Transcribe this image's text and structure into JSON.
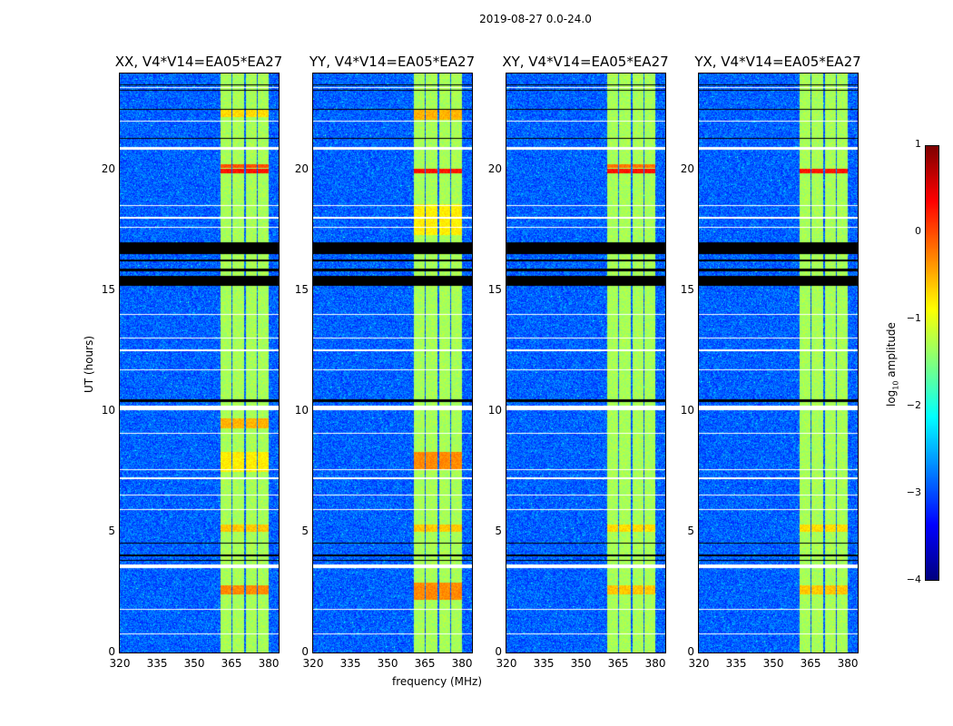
{
  "chart_data": {
    "type": "heatmap",
    "title": "2019-08-27 0.0-24.0",
    "xlabel": "frequency (MHz)",
    "ylabel": "UT (hours)",
    "xlim": [
      320,
      384
    ],
    "ylim": [
      0,
      24
    ],
    "xticks": [
      "320",
      "335",
      "350",
      "365",
      "380"
    ],
    "xtick_values": [
      320,
      335,
      350,
      365,
      380
    ],
    "yticks": [
      "0",
      "5",
      "10",
      "15",
      "20"
    ],
    "ytick_values": [
      0,
      5,
      10,
      15,
      20
    ],
    "colorbar": {
      "label_prefix": "log",
      "label_sub": "10",
      "label_suffix": " amplitude",
      "range": [
        -4,
        1
      ],
      "ticks": [
        "1",
        "0",
        "−1",
        "−2",
        "−3",
        "−4"
      ],
      "tick_values": [
        1,
        0,
        -1,
        -2,
        -3,
        -4
      ],
      "colormap": "jet"
    },
    "background_level": -2.9,
    "band_segments_mhz": [
      [
        360.5,
        365
      ],
      [
        365.5,
        370.2
      ],
      [
        370.7,
        375.2
      ],
      [
        375.7,
        380
      ]
    ],
    "band_level": -1.3,
    "white_flag_hours": [
      [
        20.85,
        20.95
      ],
      [
        18.5,
        18.55
      ],
      [
        18.0,
        18.05
      ],
      [
        17.6,
        17.65
      ],
      [
        14.0,
        14.05
      ],
      [
        13.0,
        13.05
      ],
      [
        12.5,
        12.55
      ],
      [
        11.7,
        11.75
      ],
      [
        10.05,
        10.25
      ],
      [
        9.05,
        9.1
      ],
      [
        7.55,
        7.6
      ],
      [
        7.2,
        7.25
      ],
      [
        6.5,
        6.55
      ],
      [
        5.9,
        5.95
      ],
      [
        3.5,
        3.65
      ],
      [
        1.75,
        1.8
      ],
      [
        0.75,
        0.8
      ],
      [
        23.4,
        23.42
      ],
      [
        22.0,
        22.05
      ]
    ],
    "black_flag_hours": [
      [
        15.2,
        15.6
      ],
      [
        15.8,
        15.9
      ],
      [
        16.2,
        16.3
      ],
      [
        16.5,
        17.0
      ],
      [
        10.4,
        10.5
      ],
      [
        4.5,
        4.55
      ],
      [
        4.0,
        4.05
      ],
      [
        3.8,
        3.85
      ],
      [
        1.6,
        1.63
      ],
      [
        1.3,
        1.33
      ],
      [
        1.0,
        1.03
      ],
      [
        21.3,
        21.33
      ],
      [
        21.5,
        21.53
      ],
      [
        22.5,
        22.53
      ],
      [
        23.3,
        23.33
      ],
      [
        23.5,
        23.53
      ],
      [
        19.7,
        19.73
      ]
    ],
    "panels": [
      {
        "title": "XX, V4*V14=EA05*EA27",
        "hot_rows": [
          [
            19.85,
            20.05,
            0.3
          ],
          [
            20.1,
            20.25,
            0.0
          ],
          [
            22.2,
            22.5,
            -0.7
          ],
          [
            9.3,
            9.7,
            -0.5
          ],
          [
            7.5,
            8.3,
            -0.8
          ],
          [
            5.0,
            5.3,
            -0.6
          ],
          [
            2.4,
            2.8,
            -0.3
          ]
        ]
      },
      {
        "title": "YY, V4*V14=EA05*EA27",
        "hot_rows": [
          [
            19.85,
            20.05,
            0.3
          ],
          [
            22.1,
            22.5,
            -0.5
          ],
          [
            7.6,
            8.3,
            -0.3
          ],
          [
            5.0,
            5.3,
            -0.6
          ],
          [
            2.2,
            2.9,
            -0.3
          ],
          [
            17.3,
            18.6,
            -0.8
          ]
        ]
      },
      {
        "title": "XY, V4*V14=EA05*EA27",
        "hot_rows": [
          [
            19.85,
            20.05,
            0.3
          ],
          [
            20.1,
            20.25,
            -0.2
          ],
          [
            5.0,
            5.3,
            -0.7
          ],
          [
            2.4,
            2.8,
            -0.6
          ]
        ]
      },
      {
        "title": "YX, V4*V14=EA05*EA27",
        "hot_rows": [
          [
            19.85,
            20.05,
            0.3
          ],
          [
            5.0,
            5.3,
            -0.7
          ],
          [
            2.4,
            2.8,
            -0.6
          ]
        ]
      }
    ]
  }
}
